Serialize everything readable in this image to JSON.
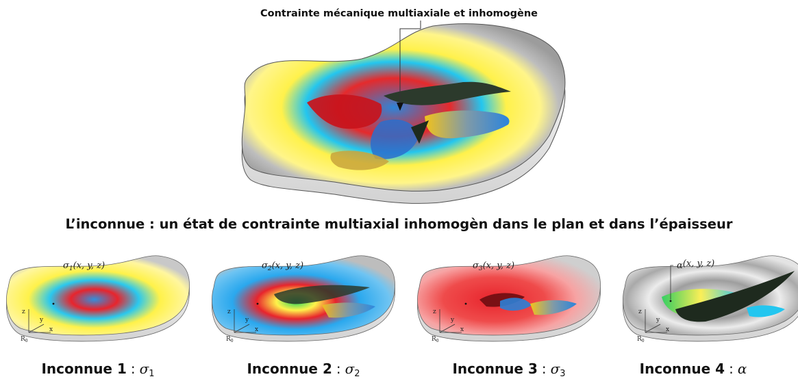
{
  "annotation": "Contrainte mécanique multiaxiale et inhomogène",
  "subtitle": "L’inconnue : un état de contrainte multiaxial inhomogèn dans le plan et dans l’épaisseur",
  "separator": ":",
  "frame": {
    "x": "x",
    "y": "y",
    "z": "z",
    "name": "R",
    "sub": "0"
  },
  "panels": [
    {
      "label": "Inconnue 1",
      "symbol": "σ",
      "subscript": "1",
      "func_symbol": "σ",
      "func_sub": "1",
      "func_args": "(x, y, z)"
    },
    {
      "label": "Inconnue 2",
      "symbol": "σ",
      "subscript": "2",
      "func_symbol": "σ",
      "func_sub": "2",
      "func_args": "(x, y, z)"
    },
    {
      "label": "Inconnue 3",
      "symbol": "σ",
      "subscript": "3",
      "func_symbol": "σ",
      "func_sub": "3",
      "func_args": "(x, y, z)"
    },
    {
      "label": "Inconnue 4",
      "symbol": "α",
      "subscript": "",
      "func_symbol": "α",
      "func_sub": "",
      "func_args": "(x, y, z)"
    }
  ],
  "colors": {
    "red": "#e8202a",
    "yellow": "#fff24a",
    "cyan": "#22c6ee",
    "blue": "#2b7fd6",
    "gray": "#b5b5b5",
    "green": "#27d25a"
  }
}
